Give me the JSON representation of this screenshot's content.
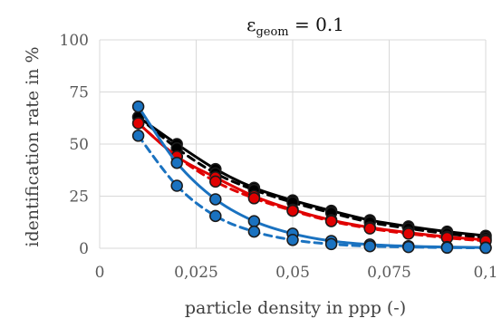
{
  "chart_data": {
    "type": "line",
    "title_symbol": "ε",
    "title_subscript": "geom",
    "title_rest": " = 0.1",
    "xlabel": "particle density in ppp (-)",
    "ylabel": "identification rate in %",
    "xlim": [
      0,
      0.1
    ],
    "ylim": [
      0,
      100
    ],
    "x_ticks": [
      "0",
      "0,025",
      "0,05",
      "0,075",
      "0,1"
    ],
    "x_tick_values": [
      0,
      0.025,
      0.05,
      0.075,
      0.1
    ],
    "y_ticks": [
      "0",
      "25",
      "50",
      "75",
      "100"
    ],
    "y_tick_values": [
      0,
      25,
      50,
      75,
      100
    ],
    "grid": true,
    "legend": "none",
    "x": [
      0.01,
      0.02,
      0.03,
      0.04,
      0.05,
      0.06,
      0.07,
      0.08,
      0.09,
      0.1
    ],
    "series": [
      {
        "color": "#000000",
        "style": "solid",
        "values": [
          63,
          50,
          38,
          29,
          23,
          18,
          13.5,
          10.5,
          8,
          6
        ]
      },
      {
        "color": "#000000",
        "style": "dashed",
        "values": [
          63,
          48,
          36,
          28,
          22,
          17,
          12.5,
          9.5,
          7,
          5
        ]
      },
      {
        "color": "#e00000",
        "style": "solid",
        "values": [
          60,
          44,
          34,
          25,
          18.5,
          13.5,
          10,
          7.5,
          5.5,
          4
        ]
      },
      {
        "color": "#e00000",
        "style": "dashed",
        "values": [
          60,
          44,
          32,
          24,
          18,
          13,
          9.5,
          7,
          5,
          3.5
        ]
      },
      {
        "color": "#1a72c0",
        "style": "solid",
        "values": [
          68,
          41,
          23.5,
          13,
          7,
          3.5,
          1.8,
          1,
          0.6,
          0.3
        ]
      },
      {
        "color": "#1a72c0",
        "style": "dashed",
        "values": [
          54,
          30,
          15.5,
          8,
          4,
          2,
          1,
          0.6,
          0.3,
          0.2
        ]
      }
    ]
  }
}
